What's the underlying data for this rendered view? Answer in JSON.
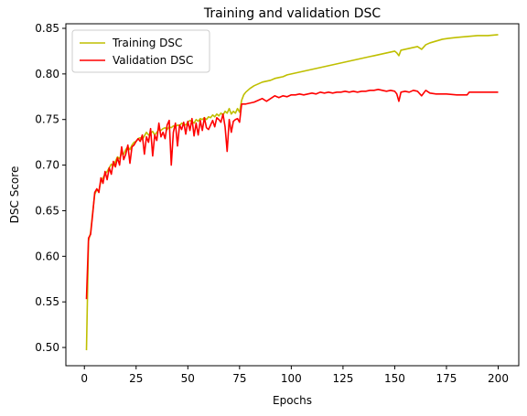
{
  "chart_data": {
    "type": "line",
    "title": "Training and validation DSC",
    "xlabel": "Epochs",
    "ylabel": "DSC Score",
    "xlim": [
      -8.95,
      209.95
    ],
    "ylim": [
      0.48,
      0.855
    ],
    "xticks": [
      0,
      25,
      50,
      75,
      100,
      125,
      150,
      175,
      200
    ],
    "yticks": [
      0.5,
      0.55,
      0.6,
      0.65,
      0.7,
      0.75,
      0.8,
      0.85
    ],
    "grid": false,
    "legend_position": "top-left",
    "series": [
      {
        "name": "Training DSC",
        "color": "#bfbf00",
        "points": [
          [
            1,
            0.497
          ],
          [
            2,
            0.617
          ],
          [
            3,
            0.626
          ],
          [
            4,
            0.648
          ],
          [
            5,
            0.668
          ],
          [
            6,
            0.673
          ],
          [
            7,
            0.672
          ],
          [
            8,
            0.683
          ],
          [
            9,
            0.686
          ],
          [
            10,
            0.69
          ],
          [
            11,
            0.693
          ],
          [
            12,
            0.697
          ],
          [
            13,
            0.701
          ],
          [
            14,
            0.699
          ],
          [
            15,
            0.704
          ],
          [
            16,
            0.709
          ],
          [
            17,
            0.707
          ],
          [
            18,
            0.713
          ],
          [
            19,
            0.712
          ],
          [
            20,
            0.717
          ],
          [
            21,
            0.72
          ],
          [
            22,
            0.717
          ],
          [
            23,
            0.722
          ],
          [
            24,
            0.725
          ],
          [
            25,
            0.726
          ],
          [
            26,
            0.729
          ],
          [
            27,
            0.73
          ],
          [
            28,
            0.728
          ],
          [
            29,
            0.732
          ],
          [
            30,
            0.736
          ],
          [
            31,
            0.733
          ],
          [
            32,
            0.735
          ],
          [
            33,
            0.737
          ],
          [
            34,
            0.733
          ],
          [
            35,
            0.736
          ],
          [
            36,
            0.739
          ],
          [
            37,
            0.738
          ],
          [
            38,
            0.74
          ],
          [
            39,
            0.741
          ],
          [
            40,
            0.739
          ],
          [
            41,
            0.742
          ],
          [
            42,
            0.741
          ],
          [
            43,
            0.743
          ],
          [
            44,
            0.742
          ],
          [
            45,
            0.744
          ],
          [
            46,
            0.743
          ],
          [
            47,
            0.746
          ],
          [
            48,
            0.745
          ],
          [
            49,
            0.744
          ],
          [
            50,
            0.747
          ],
          [
            51,
            0.749
          ],
          [
            52,
            0.748
          ],
          [
            53,
            0.746
          ],
          [
            54,
            0.75
          ],
          [
            55,
            0.748
          ],
          [
            56,
            0.751
          ],
          [
            57,
            0.75
          ],
          [
            58,
            0.752
          ],
          [
            59,
            0.75
          ],
          [
            60,
            0.753
          ],
          [
            61,
            0.752
          ],
          [
            62,
            0.755
          ],
          [
            63,
            0.753
          ],
          [
            64,
            0.756
          ],
          [
            65,
            0.754
          ],
          [
            66,
            0.757
          ],
          [
            67,
            0.755
          ],
          [
            68,
            0.759
          ],
          [
            69,
            0.757
          ],
          [
            70,
            0.762
          ],
          [
            71,
            0.756
          ],
          [
            72,
            0.759
          ],
          [
            73,
            0.757
          ],
          [
            74,
            0.762
          ],
          [
            75,
            0.758
          ],
          [
            76,
            0.771
          ],
          [
            77,
            0.777
          ],
          [
            78,
            0.78
          ],
          [
            79,
            0.782
          ],
          [
            80,
            0.784
          ],
          [
            82,
            0.787
          ],
          [
            84,
            0.789
          ],
          [
            86,
            0.791
          ],
          [
            88,
            0.792
          ],
          [
            90,
            0.793
          ],
          [
            92,
            0.795
          ],
          [
            94,
            0.796
          ],
          [
            96,
            0.797
          ],
          [
            98,
            0.799
          ],
          [
            100,
            0.8
          ],
          [
            102,
            0.801
          ],
          [
            104,
            0.802
          ],
          [
            106,
            0.803
          ],
          [
            108,
            0.804
          ],
          [
            110,
            0.805
          ],
          [
            112,
            0.806
          ],
          [
            114,
            0.807
          ],
          [
            116,
            0.808
          ],
          [
            118,
            0.809
          ],
          [
            120,
            0.81
          ],
          [
            122,
            0.811
          ],
          [
            124,
            0.812
          ],
          [
            126,
            0.813
          ],
          [
            128,
            0.814
          ],
          [
            130,
            0.815
          ],
          [
            132,
            0.816
          ],
          [
            134,
            0.817
          ],
          [
            136,
            0.818
          ],
          [
            138,
            0.819
          ],
          [
            140,
            0.82
          ],
          [
            142,
            0.821
          ],
          [
            144,
            0.822
          ],
          [
            146,
            0.823
          ],
          [
            148,
            0.824
          ],
          [
            150,
            0.825
          ],
          [
            151,
            0.823
          ],
          [
            152,
            0.82
          ],
          [
            153,
            0.826
          ],
          [
            155,
            0.827
          ],
          [
            157,
            0.828
          ],
          [
            159,
            0.829
          ],
          [
            161,
            0.83
          ],
          [
            163,
            0.827
          ],
          [
            165,
            0.832
          ],
          [
            167,
            0.834
          ],
          [
            170,
            0.836
          ],
          [
            173,
            0.838
          ],
          [
            176,
            0.839
          ],
          [
            180,
            0.84
          ],
          [
            185,
            0.841
          ],
          [
            190,
            0.842
          ],
          [
            195,
            0.842
          ],
          [
            200,
            0.843
          ]
        ]
      },
      {
        "name": "Validation DSC",
        "color": "#ff0000",
        "points": [
          [
            1,
            0.553
          ],
          [
            2,
            0.62
          ],
          [
            3,
            0.624
          ],
          [
            4,
            0.646
          ],
          [
            5,
            0.67
          ],
          [
            6,
            0.674
          ],
          [
            7,
            0.67
          ],
          [
            8,
            0.686
          ],
          [
            9,
            0.68
          ],
          [
            10,
            0.693
          ],
          [
            11,
            0.684
          ],
          [
            12,
            0.697
          ],
          [
            13,
            0.69
          ],
          [
            14,
            0.704
          ],
          [
            15,
            0.698
          ],
          [
            16,
            0.708
          ],
          [
            17,
            0.7
          ],
          [
            18,
            0.72
          ],
          [
            19,
            0.706
          ],
          [
            20,
            0.712
          ],
          [
            21,
            0.722
          ],
          [
            22,
            0.702
          ],
          [
            23,
            0.72
          ],
          [
            24,
            0.722
          ],
          [
            25,
            0.726
          ],
          [
            26,
            0.729
          ],
          [
            27,
            0.726
          ],
          [
            28,
            0.733
          ],
          [
            29,
            0.712
          ],
          [
            30,
            0.731
          ],
          [
            31,
            0.725
          ],
          [
            32,
            0.74
          ],
          [
            33,
            0.71
          ],
          [
            34,
            0.733
          ],
          [
            35,
            0.727
          ],
          [
            36,
            0.746
          ],
          [
            37,
            0.731
          ],
          [
            38,
            0.736
          ],
          [
            39,
            0.729
          ],
          [
            40,
            0.744
          ],
          [
            41,
            0.749
          ],
          [
            42,
            0.7
          ],
          [
            43,
            0.736
          ],
          [
            44,
            0.746
          ],
          [
            45,
            0.721
          ],
          [
            46,
            0.744
          ],
          [
            47,
            0.739
          ],
          [
            48,
            0.747
          ],
          [
            49,
            0.734
          ],
          [
            50,
            0.748
          ],
          [
            51,
            0.738
          ],
          [
            52,
            0.751
          ],
          [
            53,
            0.732
          ],
          [
            54,
            0.746
          ],
          [
            55,
            0.733
          ],
          [
            56,
            0.749
          ],
          [
            57,
            0.738
          ],
          [
            58,
            0.752
          ],
          [
            59,
            0.741
          ],
          [
            60,
            0.739
          ],
          [
            61,
            0.744
          ],
          [
            62,
            0.749
          ],
          [
            63,
            0.742
          ],
          [
            64,
            0.752
          ],
          [
            65,
            0.75
          ],
          [
            66,
            0.747
          ],
          [
            67,
            0.756
          ],
          [
            68,
            0.742
          ],
          [
            69,
            0.715
          ],
          [
            70,
            0.75
          ],
          [
            71,
            0.736
          ],
          [
            72,
            0.748
          ],
          [
            73,
            0.75
          ],
          [
            74,
            0.751
          ],
          [
            75,
            0.747
          ],
          [
            76,
            0.767
          ],
          [
            78,
            0.767
          ],
          [
            80,
            0.768
          ],
          [
            82,
            0.769
          ],
          [
            84,
            0.771
          ],
          [
            86,
            0.773
          ],
          [
            88,
            0.77
          ],
          [
            90,
            0.773
          ],
          [
            92,
            0.776
          ],
          [
            94,
            0.774
          ],
          [
            96,
            0.776
          ],
          [
            98,
            0.775
          ],
          [
            100,
            0.777
          ],
          [
            102,
            0.777
          ],
          [
            104,
            0.778
          ],
          [
            106,
            0.777
          ],
          [
            108,
            0.778
          ],
          [
            110,
            0.779
          ],
          [
            112,
            0.778
          ],
          [
            114,
            0.78
          ],
          [
            116,
            0.779
          ],
          [
            118,
            0.78
          ],
          [
            120,
            0.779
          ],
          [
            122,
            0.78
          ],
          [
            124,
            0.78
          ],
          [
            126,
            0.781
          ],
          [
            128,
            0.78
          ],
          [
            130,
            0.781
          ],
          [
            132,
            0.78
          ],
          [
            134,
            0.781
          ],
          [
            136,
            0.781
          ],
          [
            138,
            0.782
          ],
          [
            140,
            0.782
          ],
          [
            142,
            0.783
          ],
          [
            144,
            0.782
          ],
          [
            146,
            0.781
          ],
          [
            148,
            0.782
          ],
          [
            150,
            0.781
          ],
          [
            151,
            0.778
          ],
          [
            152,
            0.77
          ],
          [
            153,
            0.78
          ],
          [
            155,
            0.781
          ],
          [
            157,
            0.78
          ],
          [
            159,
            0.782
          ],
          [
            161,
            0.781
          ],
          [
            163,
            0.776
          ],
          [
            165,
            0.782
          ],
          [
            167,
            0.779
          ],
          [
            170,
            0.778
          ],
          [
            175,
            0.778
          ],
          [
            180,
            0.777
          ],
          [
            185,
            0.777
          ],
          [
            186,
            0.78
          ],
          [
            190,
            0.78
          ],
          [
            195,
            0.78
          ],
          [
            200,
            0.78
          ]
        ]
      }
    ]
  }
}
